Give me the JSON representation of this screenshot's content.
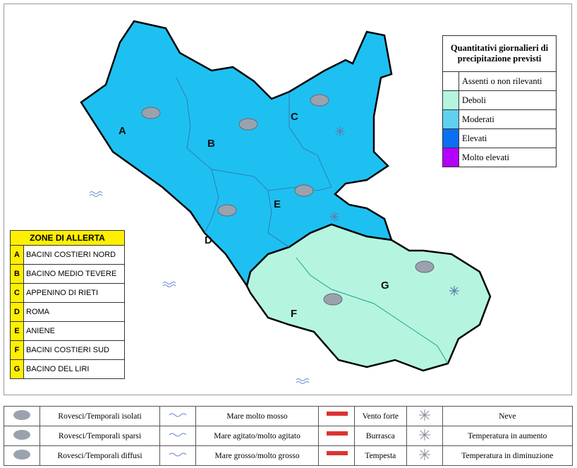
{
  "map": {
    "zone_labels": [
      "A",
      "B",
      "C",
      "D",
      "E",
      "F",
      "G"
    ]
  },
  "precipitation_legend": {
    "title": "Quantitativi giornalieri di precipitazione previsti",
    "items": [
      "Assenti o non rilevanti",
      "Deboli",
      "Moderati",
      "Elevati",
      "Molto elevati"
    ],
    "colors": [
      "#ffffff",
      "#b5f5df",
      "#5fd0f0",
      "#0a6ff2",
      "#b300ff"
    ]
  },
  "zone_table": {
    "title": "ZONE DI ALLERTA",
    "rows": [
      [
        "A",
        "BACINI COSTIERI NORD"
      ],
      [
        "B",
        "BACINO MEDIO TEVERE"
      ],
      [
        "C",
        "APPENINO DI RIETI"
      ],
      [
        "D",
        "ROMA"
      ],
      [
        "E",
        "ANIENE"
      ],
      [
        "F",
        "BACINI COSTIERI SUD"
      ],
      [
        "G",
        "BACINO DEL LIRI"
      ]
    ]
  },
  "symbol_legend": {
    "rows": [
      [
        "Rovesci/Temporali isolati",
        "Mare molto mosso",
        "Vento forte",
        "Neve"
      ],
      [
        "Rovesci/Temporali sparsi",
        "Mare agitato/molto agitato",
        "Burrasca",
        "Temperatura in aumento"
      ],
      [
        "Rovesci/Temporali diffusi",
        "Mare grosso/molto grosso",
        "Tempesta",
        "Temperatura in diminuzione"
      ]
    ]
  }
}
